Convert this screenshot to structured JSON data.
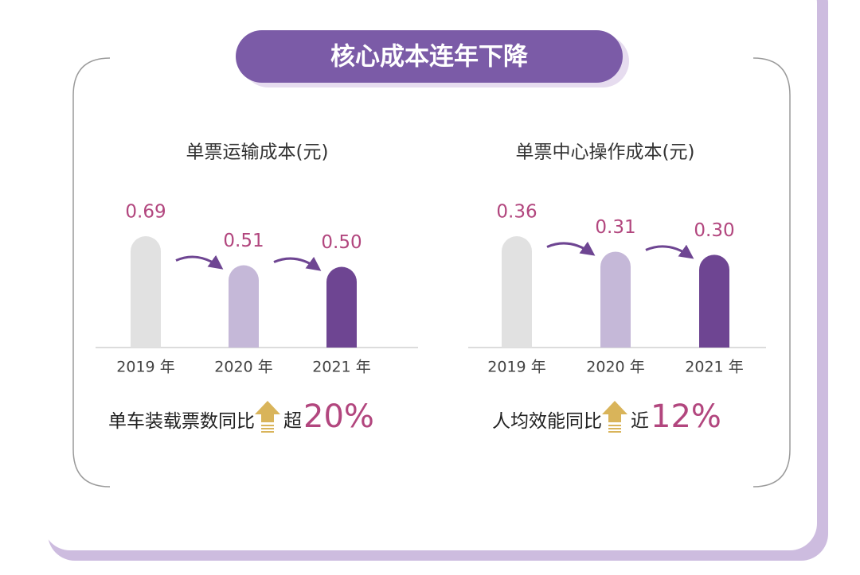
{
  "header": {
    "title": "核心成本连年下降"
  },
  "chart_data": [
    {
      "type": "bar",
      "title": "单票运输成本(元)",
      "categories": [
        "2019 年",
        "2020 年",
        "2021 年"
      ],
      "values": [
        0.69,
        0.51,
        0.5
      ],
      "value_labels": [
        "0.69",
        "0.51",
        "0.50"
      ],
      "colors": [
        "#e1e1e1",
        "#c5b8d8",
        "#6e4592"
      ],
      "note": {
        "text": "单车装载票数同比",
        "qualifier": "超",
        "change": "20%"
      }
    },
    {
      "type": "bar",
      "title": "单票中心操作成本(元)",
      "categories": [
        "2019 年",
        "2020 年",
        "2021 年"
      ],
      "values": [
        0.36,
        0.31,
        0.3
      ],
      "value_labels": [
        "0.36",
        "0.31",
        "0.30"
      ],
      "colors": [
        "#e1e1e1",
        "#c5b8d8",
        "#6e4592"
      ],
      "note": {
        "text": "人均效能同比",
        "qualifier": "近",
        "change": "12%"
      }
    }
  ]
}
